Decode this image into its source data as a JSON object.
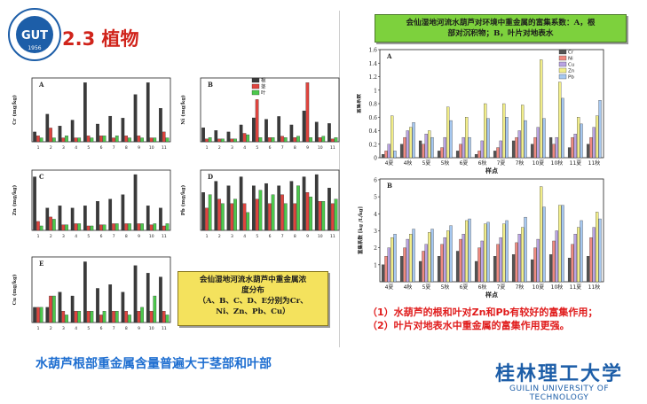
{
  "slide": {
    "section_title": "2.3 植物",
    "logo_text": "桂林理工大学",
    "logo_year": "1956",
    "bottom_caption": "水葫芦根部重金属含量普遍大于茎部和叶部",
    "yellow_box": {
      "line1": "会仙湿地河流水葫芦中重金属浓",
      "line2": "度分布",
      "line3": "（A、B、C、D、E分别为Cr、",
      "line4": "Ni、Zn、Pb、Cu）"
    },
    "green_box": {
      "line1": "会仙湿地河流水葫芦对环境中重金属的富集系数：A，根",
      "line2": "部对沉积物；B，叶片对地表水"
    },
    "notes": {
      "line1": "（1）水葫芦的根和叶对Zn和Pb有较好的富集作用；",
      "line2": "（2）叶片对地表水中重金属的富集作用更强。"
    },
    "brand": {
      "cn": "桂林理工大学",
      "en": "GUILIN UNIVERSITY OF TECHNOLOGY"
    },
    "colors": {
      "title_red": "#d0241b",
      "caption_blue": "#1f6fd1",
      "note_red": "#e01b1b",
      "root": "#3a3a3a",
      "stem": "#e0443e",
      "leaf": "#4cc94c",
      "Cr": "#555555",
      "Ni": "#f08a80",
      "Cu": "#b9a4e3",
      "Zn": "#f2ee8a",
      "Pb": "#a6c8f0"
    }
  },
  "chart_data": [
    {
      "type": "bar",
      "panel": "A",
      "ylabel": "Cr (mg/kg)",
      "categories": [
        "1",
        "2",
        "3",
        "4",
        "5",
        "6",
        "7",
        "8",
        "9",
        "10",
        "11"
      ],
      "series": [
        {
          "name": "根",
          "values": [
            5,
            14,
            8,
            11,
            30,
            9,
            13,
            12,
            24,
            30,
            17
          ]
        },
        {
          "name": "茎",
          "values": [
            3,
            7,
            2,
            2,
            3,
            3,
            2,
            3,
            3,
            2,
            5
          ]
        },
        {
          "name": "叶",
          "values": [
            2,
            2,
            3,
            2,
            2,
            3,
            3,
            2,
            2,
            2,
            2
          ]
        }
      ]
    },
    {
      "type": "bar",
      "panel": "B",
      "ylabel": "Ni (mg/kg)",
      "categories": [
        "1",
        "2",
        "3",
        "4",
        "5",
        "6",
        "7",
        "8",
        "9",
        "10",
        "11"
      ],
      "legend": [
        "根",
        "茎",
        "叶"
      ],
      "series": [
        {
          "name": "根",
          "values": [
            10,
            8,
            7,
            12,
            17,
            16,
            18,
            12,
            22,
            14,
            13
          ]
        },
        {
          "name": "茎",
          "values": [
            2,
            2,
            2,
            6,
            30,
            3,
            4,
            3,
            42,
            3,
            2
          ]
        },
        {
          "name": "叶",
          "values": [
            3,
            2,
            2,
            5,
            3,
            3,
            3,
            4,
            3,
            4,
            3
          ]
        }
      ]
    },
    {
      "type": "bar",
      "panel": "C",
      "ylabel": "Zn (mg/kg)",
      "categories": [
        "1",
        "2",
        "3",
        "4",
        "5",
        "6",
        "7",
        "8",
        "9",
        "10",
        "11"
      ],
      "series": [
        {
          "name": "根",
          "values": [
            240,
            100,
            110,
            100,
            110,
            130,
            140,
            160,
            250,
            110,
            100
          ]
        },
        {
          "name": "茎",
          "values": [
            40,
            60,
            25,
            30,
            20,
            25,
            30,
            30,
            30,
            25,
            20
          ]
        },
        {
          "name": "叶",
          "values": [
            20,
            50,
            25,
            30,
            20,
            25,
            30,
            30,
            30,
            30,
            30
          ]
        }
      ]
    },
    {
      "type": "bar",
      "panel": "D",
      "ylabel": "Pb (mg/kg)",
      "categories": [
        "1",
        "2",
        "3",
        "4",
        "5",
        "6",
        "7",
        "8",
        "9",
        "10",
        "11"
      ],
      "series": [
        {
          "name": "根",
          "values": [
            17,
            22,
            20,
            24,
            20,
            21,
            20,
            22,
            24,
            25,
            19
          ]
        },
        {
          "name": "茎",
          "values": [
            10,
            14,
            12,
            12,
            14,
            12,
            16,
            12,
            17,
            13,
            12
          ]
        },
        {
          "name": "叶",
          "values": [
            16,
            12,
            14,
            8,
            18,
            16,
            12,
            20,
            15,
            13,
            14
          ]
        }
      ]
    },
    {
      "type": "bar",
      "panel": "E",
      "ylabel": "Cu (mg/kg)",
      "categories": [
        "1",
        "2",
        "3",
        "4",
        "5",
        "6",
        "7",
        "8",
        "9",
        "10",
        "11"
      ],
      "series": [
        {
          "name": "根",
          "values": [
            4,
            4,
            8,
            7,
            16,
            9,
            10,
            8,
            15,
            13,
            12
          ]
        },
        {
          "name": "茎",
          "values": [
            4,
            7,
            3,
            3,
            3,
            2,
            3,
            3,
            3,
            3,
            3
          ]
        },
        {
          "name": "叶",
          "values": [
            4,
            7,
            2,
            3,
            3,
            3,
            3,
            2,
            4,
            7,
            2
          ]
        }
      ]
    },
    {
      "type": "bar",
      "panel": "A",
      "xlabel": "样点",
      "ylabel": "富集系数",
      "ylim": [
        0,
        1.6
      ],
      "legend": [
        "Cr",
        "Ni",
        "Cu",
        "Zn",
        "Pb"
      ],
      "categories": [
        "4夏",
        "4秋",
        "5夏",
        "5秋",
        "6夏",
        "6秋",
        "7夏",
        "7秋",
        "10夏",
        "10秋",
        "11夏",
        "11秋"
      ],
      "series": [
        {
          "name": "Cr",
          "values": [
            0.05,
            0.2,
            0.25,
            0.1,
            0.1,
            0.05,
            0.1,
            0.25,
            0.2,
            0.3,
            0.15,
            0.2
          ]
        },
        {
          "name": "Ni",
          "values": [
            0.1,
            0.3,
            0.2,
            0.15,
            0.2,
            0.1,
            0.15,
            0.3,
            0.3,
            0.2,
            0.3,
            0.3
          ]
        },
        {
          "name": "Cu",
          "values": [
            0.2,
            0.4,
            0.35,
            0.3,
            0.3,
            0.25,
            0.25,
            0.4,
            0.45,
            0.3,
            0.35,
            0.45
          ]
        },
        {
          "name": "Zn",
          "values": [
            0.62,
            0.45,
            0.4,
            0.75,
            0.6,
            0.8,
            0.8,
            0.78,
            1.45,
            1.12,
            0.6,
            0.62
          ]
        },
        {
          "name": "Pb",
          "values": [
            0.1,
            0.52,
            0.3,
            0.55,
            0.3,
            0.58,
            0.6,
            0.55,
            0.58,
            0.88,
            0.5,
            0.85
          ]
        }
      ]
    },
    {
      "type": "bar",
      "panel": "B",
      "xlabel": "样点",
      "ylabel": "富集系数 [kg /L/kg]",
      "categories": [
        "4夏",
        "4秋",
        "5夏",
        "5秋",
        "6夏",
        "6秋",
        "7夏",
        "7秋",
        "10夏",
        "10秋",
        "11夏",
        "11秋"
      ],
      "series": [
        {
          "name": "Cr",
          "values": [
            1.0,
            1.5,
            1.2,
            1.5,
            1.8,
            1.2,
            1.5,
            1.6,
            1.3,
            1.6,
            1.4,
            1.5
          ]
        },
        {
          "name": "Ni",
          "values": [
            1.5,
            2.0,
            1.8,
            2.2,
            2.5,
            2.0,
            2.2,
            2.3,
            2.0,
            2.4,
            2.2,
            2.6
          ]
        },
        {
          "name": "Cu",
          "values": [
            2.0,
            2.5,
            2.2,
            2.6,
            2.8,
            2.4,
            2.6,
            2.8,
            2.5,
            3.0,
            2.8,
            3.2
          ]
        },
        {
          "name": "Zn",
          "values": [
            2.6,
            2.8,
            2.9,
            3.0,
            3.6,
            3.4,
            3.4,
            3.2,
            5.6,
            4.5,
            3.2,
            4.1
          ]
        },
        {
          "name": "Pb",
          "values": [
            2.8,
            3.1,
            3.1,
            3.3,
            3.7,
            3.5,
            3.6,
            3.8,
            4.4,
            4.5,
            3.6,
            3.7
          ]
        }
      ]
    }
  ]
}
